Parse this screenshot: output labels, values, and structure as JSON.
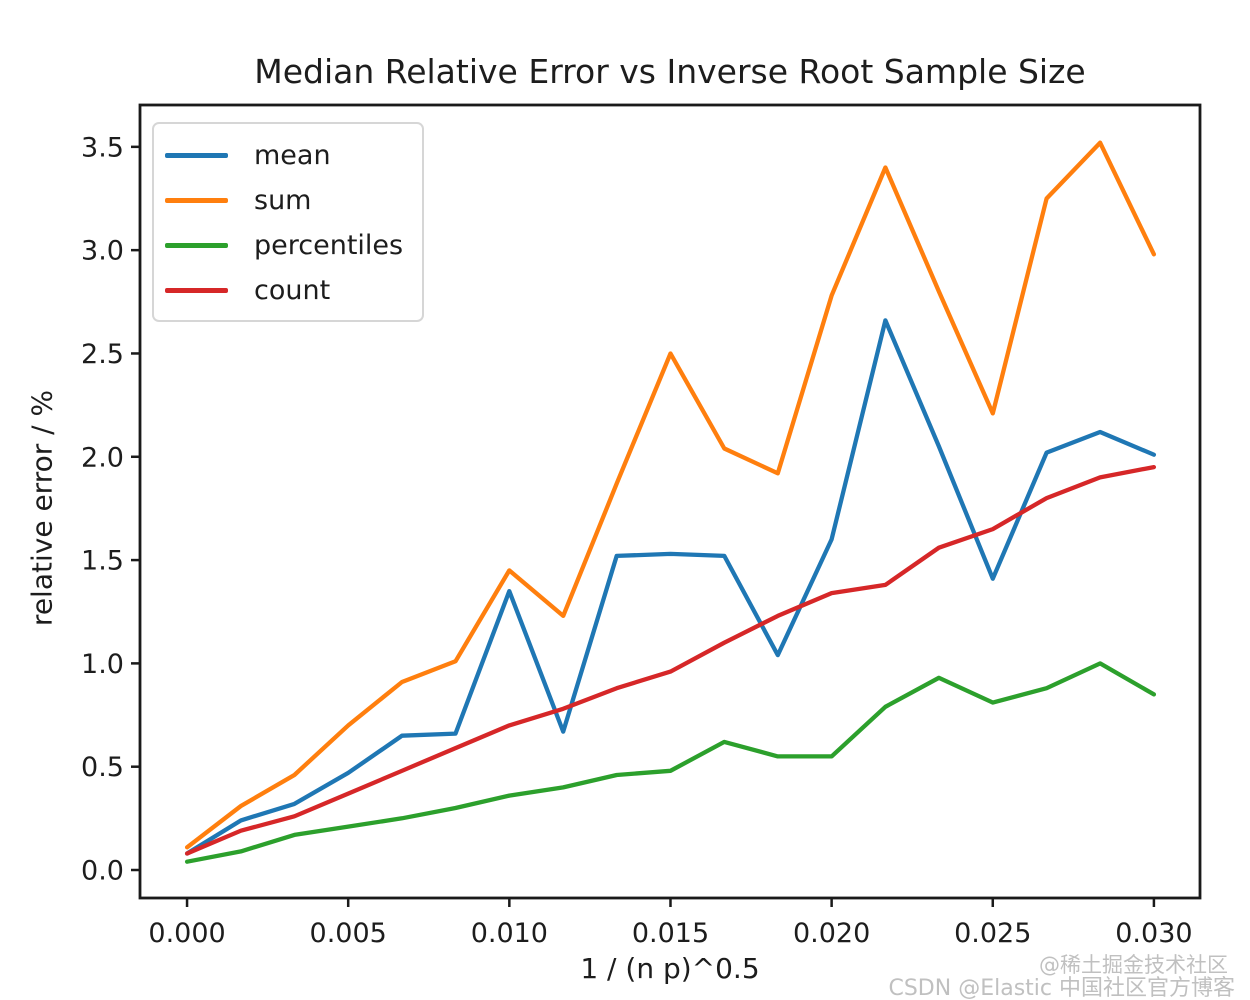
{
  "watermark": {
    "line1": "@稀土掘金技术社区",
    "line2": "CSDN @Elastic 中国社区官方博客"
  },
  "chart_data": {
    "type": "line",
    "title": "Median Relative Error vs Inverse Root Sample Size",
    "xlabel": "1 / (n p)^0.5",
    "ylabel": "relative error / %",
    "grid": false,
    "legend_position": "upper left",
    "xlim": [
      -0.00146,
      0.03143
    ],
    "ylim": [
      -0.1355,
      3.7025
    ],
    "xticks": {
      "values": [
        0.0,
        0.005,
        0.01,
        0.015,
        0.02,
        0.025,
        0.03
      ],
      "labels": [
        "0.000",
        "0.005",
        "0.010",
        "0.015",
        "0.020",
        "0.025",
        "0.030"
      ]
    },
    "yticks": {
      "values": [
        0.0,
        0.5,
        1.0,
        1.5,
        2.0,
        2.5,
        3.0,
        3.5
      ],
      "labels": [
        "0.0",
        "0.5",
        "1.0",
        "1.5",
        "2.0",
        "2.5",
        "3.0",
        "3.5"
      ]
    },
    "x": [
      0.0,
      0.00167,
      0.00333,
      0.005,
      0.00667,
      0.00833,
      0.01,
      0.01167,
      0.01333,
      0.015,
      0.01667,
      0.01833,
      0.02,
      0.02167,
      0.02333,
      0.025,
      0.02667,
      0.02833,
      0.03
    ],
    "series": [
      {
        "name": "mean",
        "color": "#1f77b4",
        "values": [
          0.08,
          0.24,
          0.32,
          0.47,
          0.65,
          0.66,
          1.35,
          0.67,
          1.52,
          1.53,
          1.52,
          1.04,
          1.6,
          2.66,
          2.05,
          1.41,
          2.02,
          2.12,
          2.01
        ]
      },
      {
        "name": "sum",
        "color": "#ff7f0e",
        "values": [
          0.11,
          0.31,
          0.46,
          0.7,
          0.91,
          1.01,
          1.45,
          1.23,
          1.87,
          2.5,
          2.04,
          1.92,
          2.78,
          3.4,
          2.8,
          2.21,
          3.25,
          3.52,
          2.98
        ]
      },
      {
        "name": "percentiles",
        "color": "#2ca02c",
        "values": [
          0.04,
          0.09,
          0.17,
          0.21,
          0.25,
          0.3,
          0.36,
          0.4,
          0.46,
          0.48,
          0.62,
          0.55,
          0.55,
          0.79,
          0.93,
          0.81,
          0.88,
          1.0,
          0.85
        ]
      },
      {
        "name": "count",
        "color": "#d62728",
        "values": [
          0.08,
          0.19,
          0.26,
          0.37,
          0.48,
          0.59,
          0.7,
          0.78,
          0.88,
          0.96,
          1.1,
          1.23,
          1.34,
          1.38,
          1.56,
          1.65,
          1.8,
          1.9,
          1.95
        ]
      }
    ]
  }
}
